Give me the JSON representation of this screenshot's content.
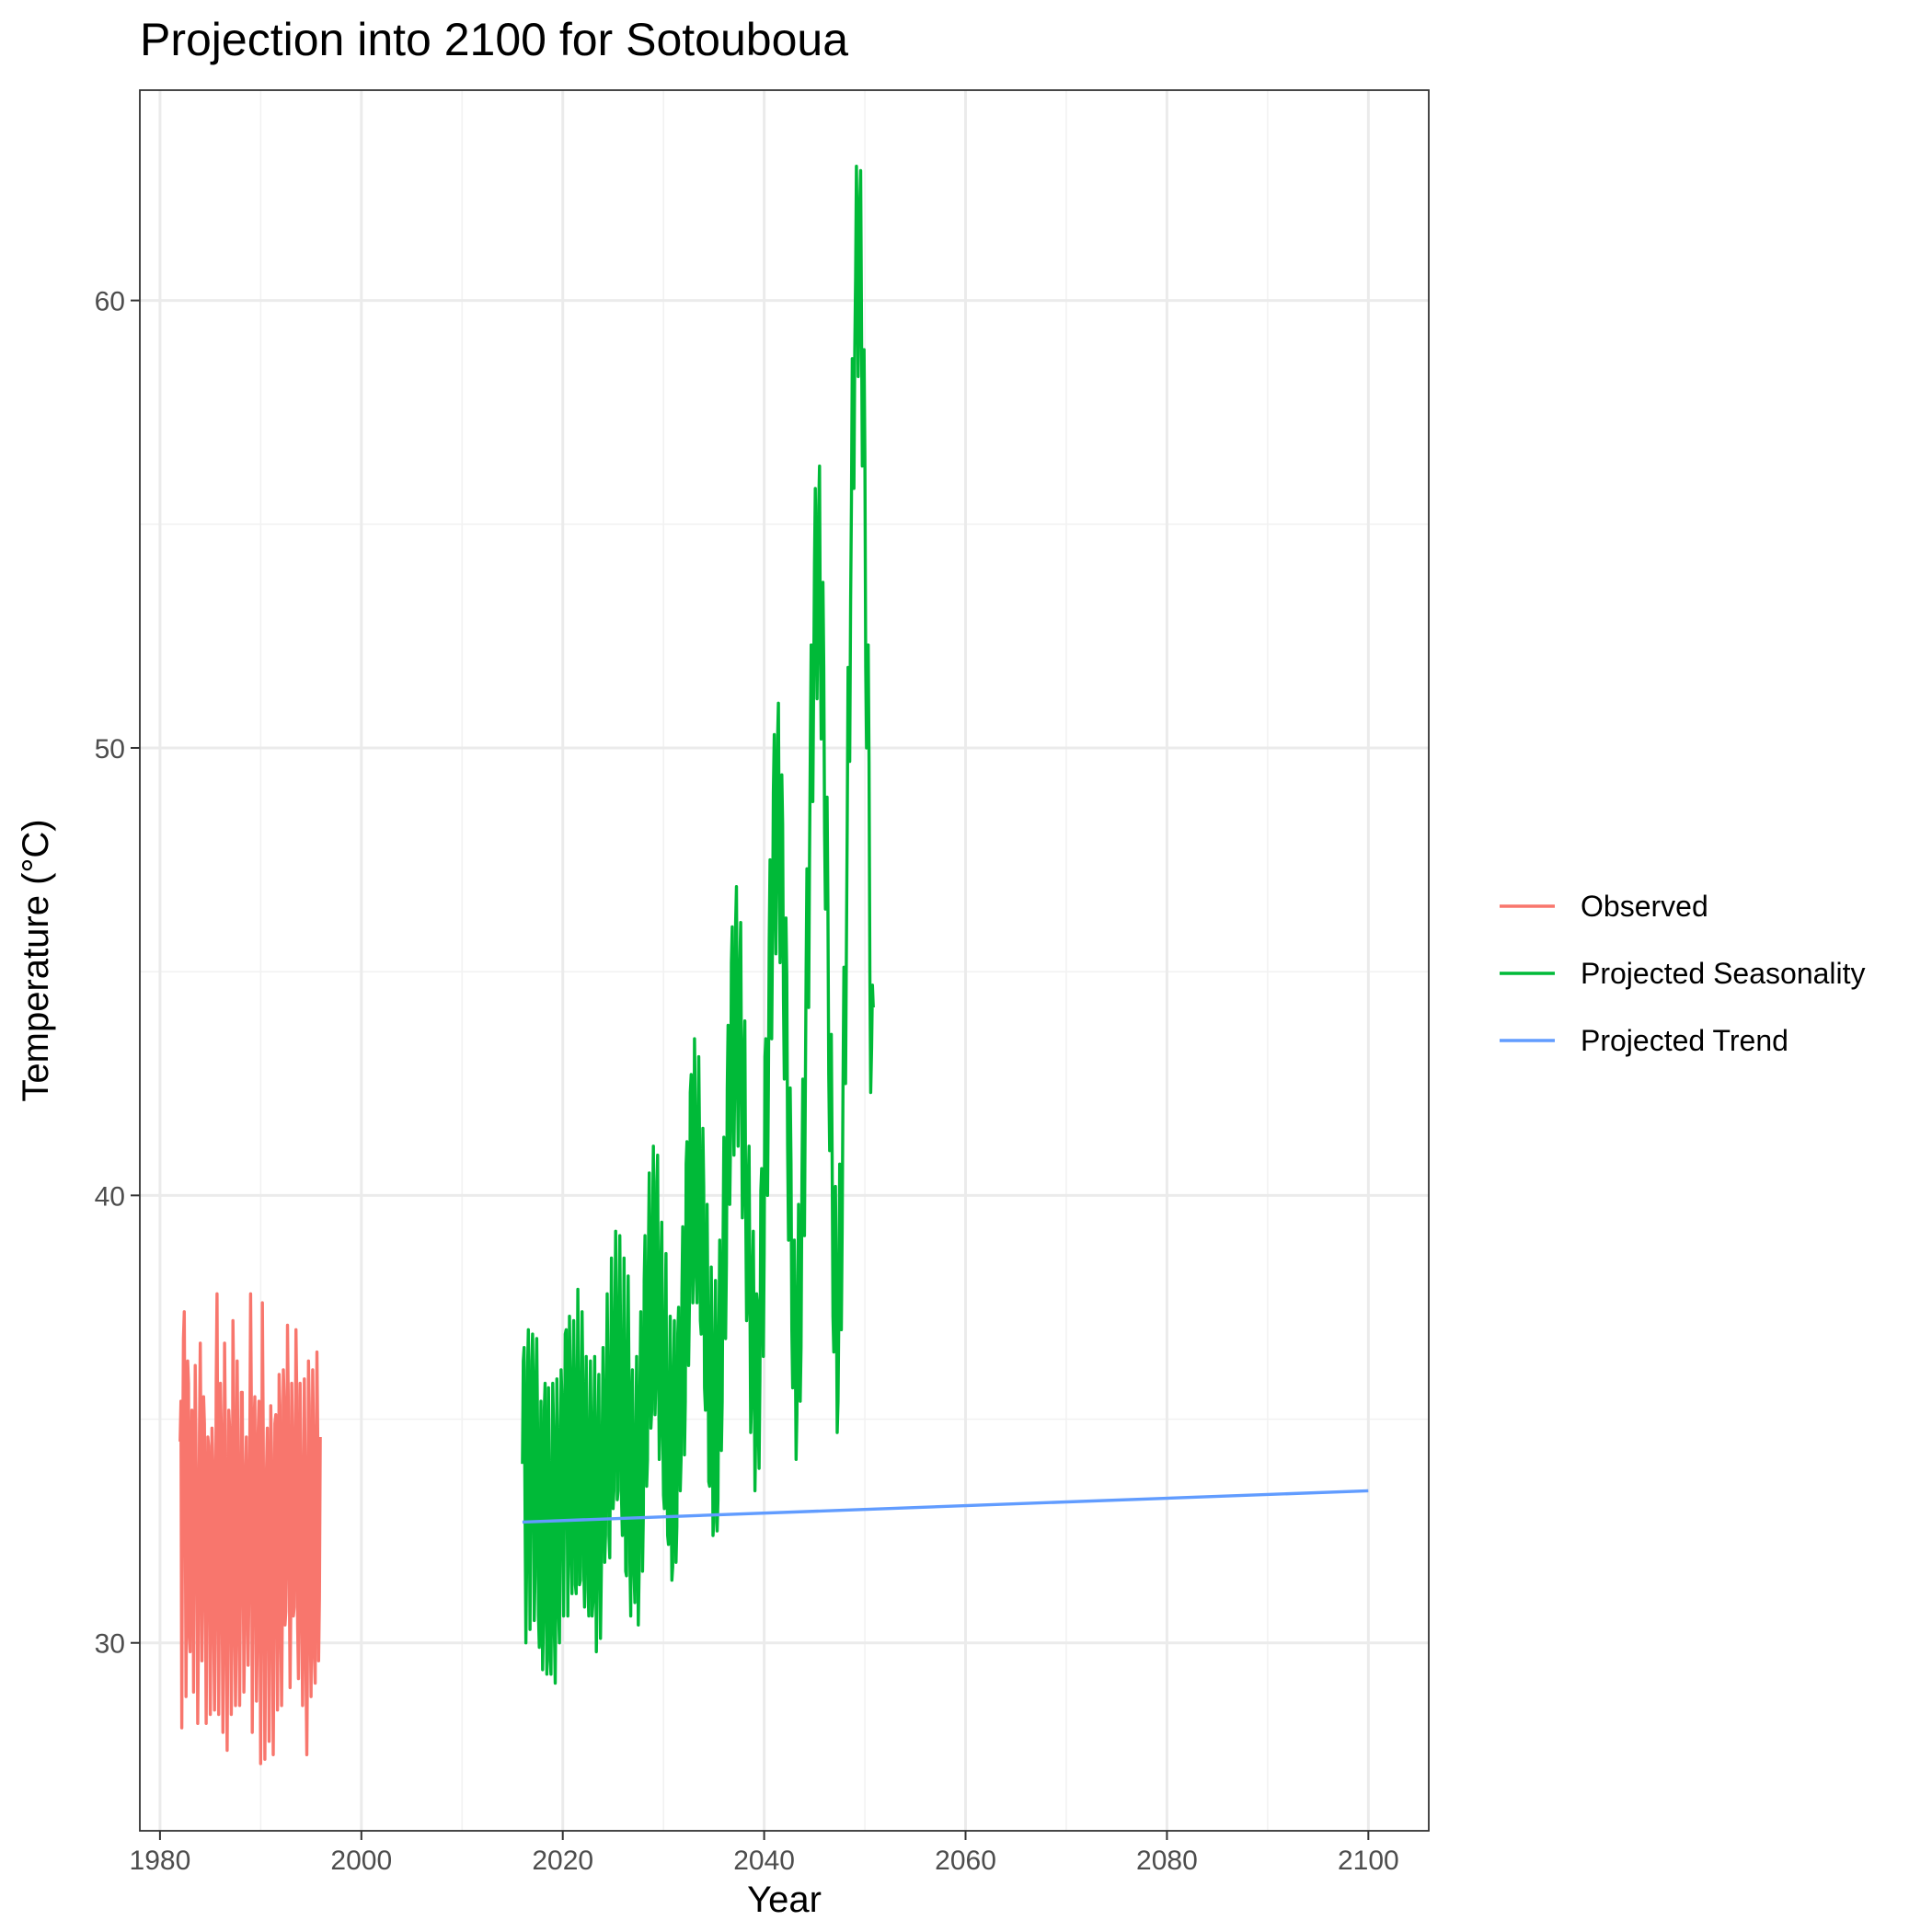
{
  "chart_data": {
    "type": "line",
    "title": "Projection into 2100 for Sotouboua",
    "xlabel": "Year",
    "ylabel": "Temperature (°C)",
    "xlim": [
      1978,
      2106
    ],
    "ylim": [
      25.8,
      64.7
    ],
    "x_ticks": [
      1980,
      2000,
      2020,
      2040,
      2060,
      2080,
      2100
    ],
    "y_ticks": [
      30,
      40,
      50,
      60
    ],
    "grid": true,
    "legend_position": "right",
    "series": [
      {
        "name": "Observed",
        "color": "#F8766D",
        "x_start": 1982.0,
        "x_step": 0.0833333,
        "values": [
          34.5,
          35.4,
          28.1,
          33.9,
          36.8,
          37.4,
          33.5,
          28.8,
          32.1,
          36.3,
          35.8,
          30.2,
          29.8,
          33.6,
          35.2,
          34.5,
          28.9,
          32.6,
          36.2,
          34.1,
          32.8,
          28.2,
          30.3,
          34.7,
          36.7,
          33.9,
          29.6,
          31.5,
          35.5,
          34.9,
          32.0,
          28.2,
          31.4,
          34.6,
          34.4,
          32.5,
          28.4,
          31.3,
          34.8,
          34.0,
          30.4,
          28.5,
          30.6,
          35.8,
          37.8,
          33.5,
          28.4,
          31.8,
          35.8,
          34.8,
          31.0,
          28.0,
          31.0,
          36.7,
          34.6,
          30.2,
          27.6,
          30.7,
          35.2,
          34.8,
          32.0,
          28.4,
          30.5,
          37.2,
          35.3,
          30.8,
          28.6,
          30.5,
          36.3,
          34.2,
          31.2,
          28.6,
          31.7,
          35.6,
          35.6,
          32.5,
          28.9,
          30.2,
          33.7,
          34.6,
          32.6,
          29.5,
          31.2,
          34.3,
          37.8,
          35.1,
          28.0,
          31.2,
          34.8,
          35.5,
          31.5,
          28.7,
          30.2,
          34.7,
          35.4,
          32.4,
          27.3,
          31.5,
          37.6,
          34.7,
          30.9,
          27.4,
          30.2,
          33.9,
          34.8,
          32.3,
          27.8,
          31.0,
          35.3,
          34.2,
          30.8,
          27.5,
          30.3,
          34.9,
          35.1,
          32.5,
          28.5,
          30.9,
          36.0,
          35.3,
          30.6,
          28.6,
          31.3,
          36.1,
          35.4,
          30.4,
          30.7,
          32.5,
          37.1,
          35.3,
          31.6,
          29.0,
          31.0,
          35.8,
          34.5,
          30.6,
          30.8,
          32.8,
          37.0,
          35.5,
          30.4,
          29.2,
          31.1,
          35.8,
          34.1,
          31.0,
          28.6,
          31.5,
          35.9,
          33.9,
          29.4,
          27.5,
          30.2,
          36.3,
          35.3,
          30.7,
          28.8,
          31.8,
          36.1,
          34.6,
          29.7,
          29.1,
          32.8,
          36.5,
          34.5,
          29.6,
          31.0,
          34.6
        ]
      },
      {
        "name": "Projected Seasonality",
        "color": "#00BA38",
        "x_start": 2016.0,
        "x_step": 0.0833333,
        "values": [
          34.0,
          36.3,
          36.6,
          33.0,
          30.0,
          31.9,
          36.1,
          37.0,
          33.5,
          30.3,
          32.7,
          36.3,
          36.9,
          35.2,
          30.5,
          31.5,
          35.8,
          36.8,
          34.9,
          30.6,
          29.9,
          33.3,
          35.4,
          32.4,
          29.4,
          30.5,
          35.2,
          35.8,
          32.4,
          29.3,
          31.9,
          35.7,
          33.8,
          29.6,
          29.3,
          31.8,
          35.8,
          34.8,
          30.2,
          29.1,
          31.6,
          35.9,
          34.7,
          30.8,
          30.0,
          33.1,
          36.1,
          35.5,
          32.6,
          30.6,
          33.3,
          36.9,
          37.0,
          33.8,
          30.6,
          33.4,
          37.3,
          35.6,
          31.9,
          31.1,
          35.4,
          37.2,
          35.6,
          31.3,
          31.1,
          34.7,
          37.9,
          35.3,
          31.3,
          31.4,
          35.3,
          37.4,
          35.7,
          31.7,
          30.8,
          34.6,
          36.4,
          33.7,
          31.2,
          30.6,
          34.6,
          36.3,
          34.4,
          30.6,
          30.9,
          34.7,
          36.4,
          33.2,
          29.8,
          31.4,
          34.8,
          36.0,
          33.3,
          30.1,
          31.7,
          34.7,
          36.6,
          34.4,
          31.8,
          32.4,
          35.6,
          37.8,
          35.6,
          32.4,
          31.9,
          35.1,
          38.6,
          36.1,
          33.0,
          33.4,
          37.1,
          39.2,
          36.3,
          33.2,
          33.4,
          37.2,
          39.1,
          36.7,
          33.2,
          32.4,
          35.1,
          38.6,
          35.5,
          31.6,
          31.5,
          35.9,
          38.2,
          35.6,
          31.8,
          30.6,
          35.3,
          36.1,
          33.7,
          31.5,
          30.9,
          34.6,
          36.4,
          33.6,
          30.4,
          31.6,
          35.7,
          37.4,
          34.6,
          31.6,
          32.9,
          38.1,
          39.1,
          35.7,
          33.5,
          34.1,
          38.5,
          40.5,
          37.2,
          34.8,
          35.2,
          39.4,
          41.1,
          37.1,
          35.1,
          35.9,
          40.3,
          40.9,
          36.6,
          34.1,
          35.0,
          38.5,
          39.4,
          35.2,
          33.3,
          33.0,
          37.2,
          38.7,
          34.4,
          32.4,
          32.2,
          35.4,
          37.3,
          33.6,
          31.4,
          31.7,
          36.1,
          37.2,
          33.4,
          31.8,
          32.6,
          36.9,
          37.5,
          34.7,
          33.4,
          34.1,
          37.8,
          39.3,
          36.9,
          34.2,
          35.4,
          40.7,
          41.2,
          38.0,
          36.2,
          37.6,
          42.3,
          42.7,
          39.2,
          37.6,
          39.0,
          43.5,
          42.0,
          38.3,
          37.6,
          39.8,
          43.1,
          41.2,
          37.2,
          36.9,
          39.0,
          41.5,
          40.2,
          35.7,
          35.2,
          36.9,
          39.8,
          37.3,
          33.6,
          33.5,
          35.6,
          38.4,
          36.3,
          32.4,
          32.7,
          35.9,
          38.1,
          35.7,
          32.5,
          33.2,
          36.9,
          39.0,
          37.4,
          34.3,
          35.4,
          38.9,
          41.3,
          39.2,
          36.8,
          38.5,
          42.4,
          43.8,
          41.5,
          39.8,
          41.3,
          45.2,
          46.0,
          42.7,
          40.9,
          42.7,
          46.1,
          46.9,
          43.1,
          41.1,
          43.1,
          45.2,
          46.1,
          42.5,
          39.5,
          40.5,
          43.1,
          43.9,
          39.9,
          37.2,
          37.6,
          40.3,
          41.1,
          37.9,
          34.7,
          35.4,
          38.1,
          39.2,
          36.6,
          33.4,
          34.8,
          37.8,
          37.6,
          34.9,
          33.9,
          35.9,
          40.1,
          40.6,
          38.5,
          36.4,
          38.7,
          43.1,
          43.5,
          41.9,
          40.0,
          42.4,
          45.7,
          47.5,
          45.2,
          43.5,
          45.8,
          49.0,
          50.3,
          47.2,
          45.4,
          47.8,
          50.2,
          51.0,
          47.6,
          45.2,
          46.7,
          49.4,
          48.3,
          44.4,
          42.6,
          44.3,
          46.2,
          44.9,
          41.1,
          39.0,
          40.6,
          42.4,
          40.7,
          37.0,
          35.7,
          37.4,
          39.0,
          37.0,
          34.1,
          35.1,
          37.4,
          39.8,
          37.3,
          35.4,
          36.6,
          40.4,
          42.6,
          40.7,
          39.1,
          42.1,
          45.0,
          47.3,
          45.4,
          44.2,
          47.5,
          50.0,
          52.3,
          50.2,
          48.8,
          51.4,
          54.1,
          55.8,
          53.2,
          51.1,
          53.0,
          55.4,
          56.3,
          52.3,
          50.2,
          51.5,
          53.7,
          51.8,
          48.1,
          46.4,
          47.8,
          48.9,
          46.5,
          42.7,
          41.0,
          42.1,
          43.6,
          40.9,
          37.3,
          36.5,
          37.9,
          40.2,
          37.9,
          34.7,
          35.4,
          37.4,
          40.7,
          39.0,
          37.0,
          39.2,
          42.4,
          45.1,
          43.3,
          42.5,
          45.5,
          48.3,
          51.8,
          50.4,
          49.7,
          53.3,
          55.5,
          58.7,
          56.9,
          55.8,
          58.9,
          60.5,
          63.0,
          61.3,
          58.3,
          60.1,
          62.2,
          62.9,
          59.5,
          56.3,
          57.3,
          58.9,
          56.5,
          51.8,
          50.0,
          51.1,
          52.3,
          49.7,
          45.0,
          42.3,
          43.3,
          44.7,
          44.2
        ]
      },
      {
        "name": "Projected Trend",
        "color": "#619CFF",
        "x": [
          2016,
          2100
        ],
        "values": [
          32.7,
          33.4
        ]
      }
    ]
  }
}
